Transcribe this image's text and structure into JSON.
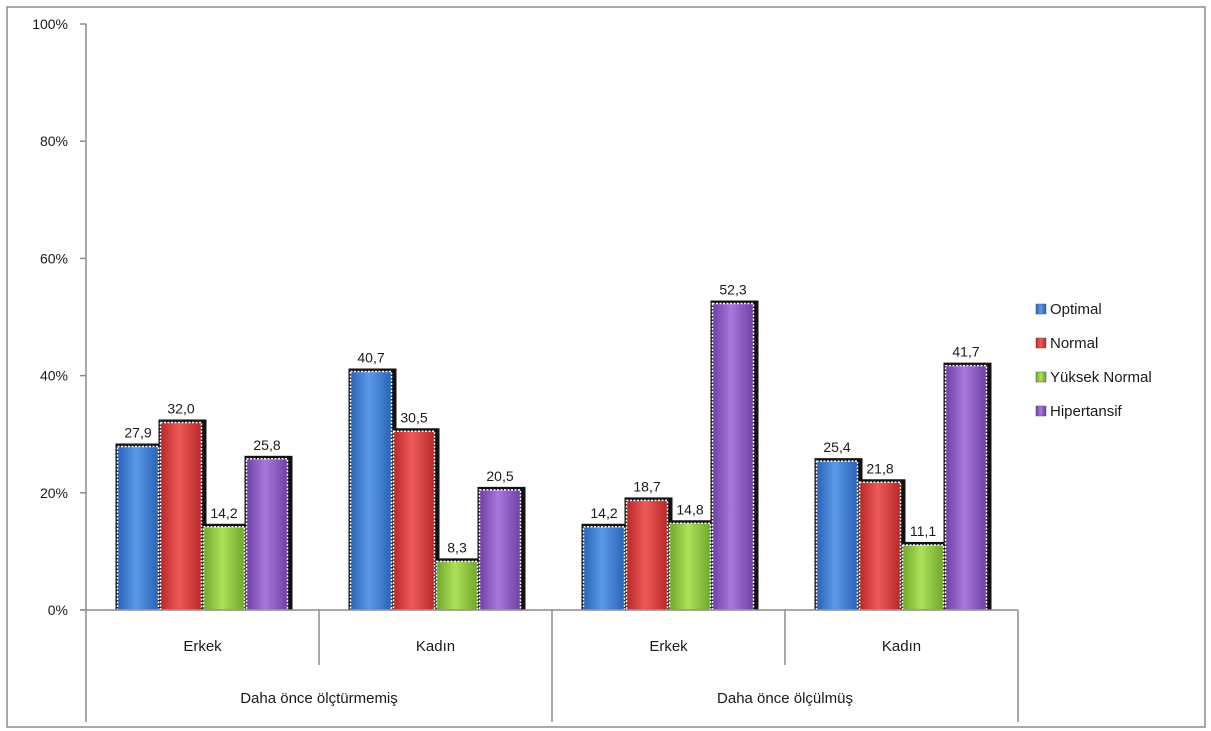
{
  "chart_data": {
    "type": "bar",
    "title": "",
    "xlabel": "",
    "ylabel": "",
    "ylim": [
      0,
      100
    ],
    "yticks": [
      0,
      20,
      40,
      60,
      80,
      100
    ],
    "ytick_labels": [
      "0%",
      "20%",
      "40%",
      "60%",
      "80%",
      "100%"
    ],
    "groups": [
      {
        "label": "Daha önce ölçtürmemiş",
        "categories": [
          "Erkek",
          "Kadın"
        ]
      },
      {
        "label": "Daha önce ölçülmüş",
        "categories": [
          "Erkek",
          "Kadın"
        ]
      }
    ],
    "categories": [
      "Erkek",
      "Kadın",
      "Erkek",
      "Kadın"
    ],
    "series": [
      {
        "name": "Optimal",
        "color": "#3a7bd5",
        "values": [
          27.9,
          40.7,
          14.2,
          25.4
        ],
        "labels": [
          "27,9",
          "40,7",
          "14,2",
          "25,4"
        ]
      },
      {
        "name": "Normal",
        "color": "#d93b3b",
        "values": [
          32.0,
          30.5,
          18.7,
          21.8
        ],
        "labels": [
          "32,0",
          "30,5",
          "18,7",
          "21,8"
        ]
      },
      {
        "name": "Yüksek Normal",
        "color": "#8cc63f",
        "values": [
          14.2,
          8.3,
          14.8,
          11.1
        ],
        "labels": [
          "14,2",
          "8,3",
          "14,8",
          "11,1"
        ]
      },
      {
        "name": "Hipertansif",
        "color": "#8a56c2",
        "values": [
          25.8,
          20.5,
          52.3,
          41.7
        ],
        "labels": [
          "25,8",
          "20,5",
          "52,3",
          "41,7"
        ]
      }
    ],
    "grid": false,
    "legend": "right"
  }
}
